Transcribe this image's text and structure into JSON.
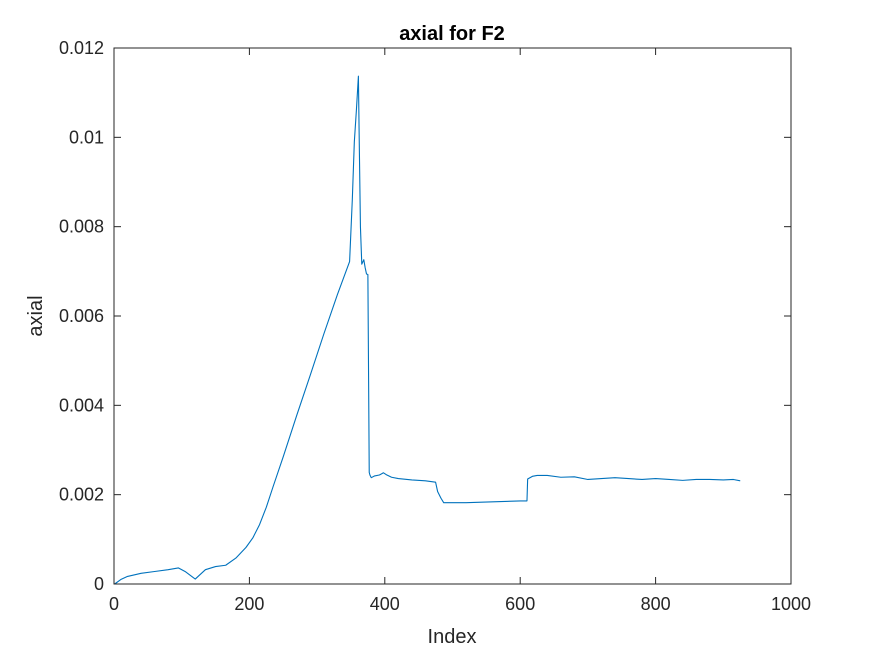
{
  "chart_data": {
    "type": "line",
    "title": "axial for F2",
    "xlabel": "Index",
    "ylabel": "axial",
    "xlim": [
      0,
      1000
    ],
    "ylim": [
      0,
      0.012
    ],
    "xticks": [
      0,
      200,
      400,
      600,
      800,
      1000
    ],
    "xtick_labels": [
      "0",
      "200",
      "400",
      "600",
      "800",
      "1000"
    ],
    "yticks": [
      0,
      0.002,
      0.004,
      0.006,
      0.008,
      0.01,
      0.012
    ],
    "ytick_labels": [
      "0",
      "0.002",
      "0.004",
      "0.006",
      "0.008",
      "0.01",
      "0.012"
    ],
    "grid": false,
    "legend": "none",
    "line_color": "#0072BD",
    "series": [
      {
        "x": [
          1,
          10,
          20,
          40,
          60,
          80,
          95,
          105,
          120,
          135,
          150,
          165,
          180,
          195,
          205,
          215,
          225,
          235,
          250,
          270,
          290,
          310,
          330,
          348,
          352,
          355,
          358,
          361,
          362,
          364,
          366,
          369,
          371,
          373,
          375,
          377,
          378,
          380,
          385,
          392,
          398,
          402,
          410,
          420,
          440,
          460,
          475,
          478,
          483,
          487,
          495,
          520,
          560,
          600,
          610,
          611,
          618,
          625,
          640,
          660,
          680,
          700,
          720,
          740,
          760,
          780,
          800,
          820,
          840,
          860,
          880,
          900,
          915,
          925
        ],
        "y": [
          0.0,
          0.0001,
          0.00017,
          0.00024,
          0.00028,
          0.00032,
          0.00036,
          0.00028,
          0.00011,
          0.00032,
          0.00039,
          0.00042,
          0.00058,
          0.00082,
          0.00103,
          0.00133,
          0.00172,
          0.00218,
          0.00285,
          0.00378,
          0.00468,
          0.0056,
          0.00648,
          0.00722,
          0.0086,
          0.0099,
          0.0106,
          0.01137,
          0.0102,
          0.008,
          0.00716,
          0.00726,
          0.00708,
          0.00694,
          0.00693,
          0.0025,
          0.00244,
          0.00238,
          0.00242,
          0.00244,
          0.00249,
          0.00245,
          0.00239,
          0.00236,
          0.00233,
          0.00231,
          0.00228,
          0.00207,
          0.00192,
          0.00182,
          0.00182,
          0.00182,
          0.00184,
          0.00186,
          0.00186,
          0.00235,
          0.00241,
          0.00243,
          0.00243,
          0.00239,
          0.0024,
          0.00234,
          0.00236,
          0.00238,
          0.00236,
          0.00234,
          0.00236,
          0.00234,
          0.00232,
          0.00234,
          0.00234,
          0.00233,
          0.00234,
          0.00231
        ]
      }
    ]
  }
}
